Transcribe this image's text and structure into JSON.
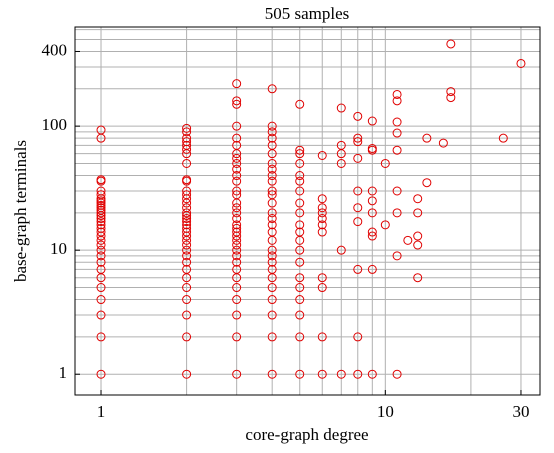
{
  "chart_data": {
    "type": "scatter",
    "title": "505 samples",
    "x_label": "core-graph degree",
    "y_label": "base-graph terminals",
    "x_scale": "log",
    "y_scale": "log",
    "grid": true,
    "color": "#e00000",
    "xlim": [
      0.81,
      35
    ],
    "ylim": [
      0.68,
      630
    ],
    "xticks": [
      1,
      10,
      30
    ],
    "yticks": [
      1,
      10,
      100,
      400
    ],
    "xgrid": [
      1,
      2,
      3,
      4,
      5,
      6,
      7,
      8,
      9,
      10,
      20,
      30
    ],
    "ygrid": [
      1,
      2,
      3,
      4,
      5,
      6,
      7,
      8,
      9,
      10,
      20,
      30,
      40,
      50,
      60,
      70,
      80,
      90,
      100,
      200,
      300,
      400,
      500,
      600
    ],
    "x": [
      1,
      1,
      1,
      1,
      1,
      1,
      1,
      1,
      1,
      1,
      1,
      1,
      1,
      1,
      1,
      1,
      1,
      1,
      1,
      1,
      1,
      1,
      1,
      1,
      1,
      1,
      1,
      1,
      1,
      1,
      1,
      1,
      2,
      2,
      2,
      2,
      2,
      2,
      2,
      2,
      2,
      2,
      2,
      2,
      2,
      2,
      2,
      2,
      2,
      2,
      2,
      2,
      2,
      2,
      2,
      2,
      2,
      2,
      2,
      2,
      2,
      2,
      2,
      2,
      2,
      2,
      2,
      3,
      3,
      3,
      3,
      3,
      3,
      3,
      3,
      3,
      3,
      3,
      3,
      3,
      3,
      3,
      3,
      3,
      3,
      3,
      3,
      3,
      3,
      3,
      3,
      3,
      3,
      3,
      3,
      3,
      3,
      3,
      3,
      3,
      3,
      4,
      4,
      4,
      4,
      4,
      4,
      4,
      4,
      4,
      4,
      4,
      4,
      4,
      4,
      4,
      4,
      4,
      4,
      4,
      4,
      4,
      4,
      4,
      4,
      4,
      4,
      4,
      4,
      5,
      5,
      5,
      5,
      5,
      5,
      5,
      5,
      5,
      5,
      5,
      5,
      5,
      5,
      5,
      5,
      5,
      5,
      5,
      5,
      6,
      6,
      6,
      6,
      6,
      6,
      6,
      6,
      6,
      6,
      6,
      7,
      7,
      7,
      7,
      7,
      7,
      8,
      8,
      8,
      8,
      8,
      8,
      8,
      8,
      8,
      8,
      9,
      9,
      9,
      9,
      9,
      9,
      9,
      9,
      9,
      9,
      10,
      10,
      11,
      11,
      11,
      11,
      11,
      11,
      11,
      11,
      11,
      12,
      13,
      13,
      13,
      13,
      13,
      14,
      14,
      16,
      17,
      17,
      17,
      26,
      30
    ],
    "values": [
      1,
      2,
      3,
      4,
      5,
      6,
      7,
      8,
      9,
      10,
      11,
      12,
      13,
      14,
      15,
      16,
      17,
      18,
      19,
      20,
      21,
      22,
      23,
      24,
      25,
      26,
      28,
      30,
      36,
      37,
      80,
      93,
      1,
      2,
      3,
      4,
      5,
      6,
      7,
      8,
      9,
      10,
      11,
      12,
      13,
      14,
      15,
      16,
      17,
      18,
      19,
      20,
      22,
      24,
      26,
      28,
      30,
      36,
      37,
      50,
      60,
      65,
      70,
      75,
      80,
      90,
      96,
      1,
      2,
      3,
      4,
      5,
      6,
      7,
      8,
      9,
      10,
      11,
      12,
      13,
      14,
      15,
      16,
      18,
      20,
      22,
      24,
      28,
      30,
      36,
      40,
      45,
      50,
      55,
      60,
      70,
      80,
      100,
      150,
      160,
      220,
      1,
      2,
      3,
      4,
      5,
      6,
      7,
      8,
      9,
      10,
      12,
      14,
      16,
      18,
      20,
      24,
      28,
      30,
      36,
      40,
      45,
      50,
      60,
      70,
      80,
      90,
      100,
      200,
      1,
      2,
      3,
      4,
      5,
      6,
      8,
      10,
      12,
      14,
      16,
      20,
      24,
      30,
      36,
      40,
      50,
      60,
      64,
      150,
      1,
      2,
      5,
      6,
      14,
      16,
      18,
      20,
      22,
      26,
      58,
      1,
      10,
      50,
      60,
      70,
      140,
      1,
      2,
      7,
      17,
      22,
      30,
      55,
      75,
      80,
      120,
      1,
      7,
      13,
      14,
      20,
      25,
      30,
      64,
      66,
      110,
      16,
      50,
      1,
      9,
      20,
      30,
      64,
      88,
      108,
      160,
      180,
      12,
      6,
      11,
      13,
      20,
      26,
      35,
      80,
      73,
      170,
      190,
      460,
      80,
      320
    ]
  }
}
